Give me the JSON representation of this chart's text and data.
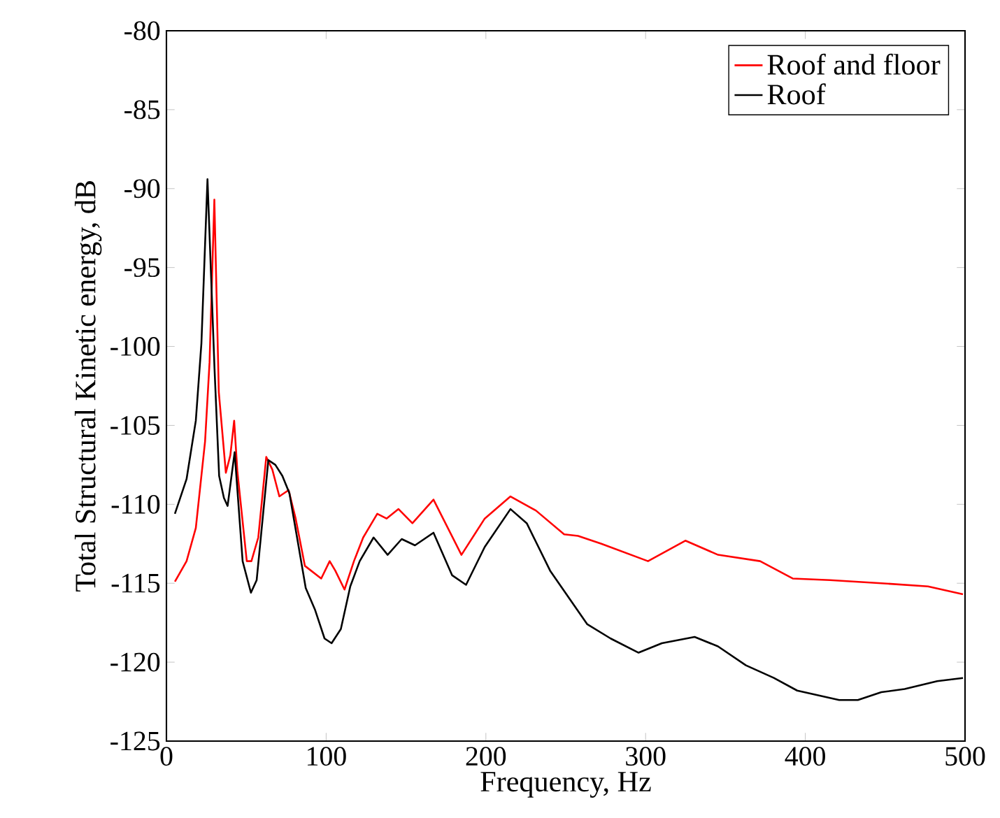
{
  "chart_data": {
    "type": "line",
    "xlabel": "Frequency, Hz",
    "ylabel": "Total Structural Kinetic energy, dB",
    "xlim": [
      0,
      500
    ],
    "ylim": [
      -125,
      -80
    ],
    "xticks": [
      0,
      100,
      200,
      300,
      400,
      500
    ],
    "yticks": [
      -125,
      -120,
      -115,
      -110,
      -105,
      -100,
      -95,
      -90,
      -85,
      -80
    ],
    "legend": "top right",
    "grid": false,
    "marker": "none",
    "line_style": "solid",
    "series": [
      {
        "name": "Roof and floor",
        "color": "#ff0000",
        "x": [
          5.3,
          12.6,
          18.4,
          24.2,
          27,
          30,
          32.8,
          37.2,
          40,
          42.4,
          44.4,
          50.3,
          53.2,
          57.5,
          62.5,
          66.3,
          70.7,
          76.5,
          80.9,
          86.7,
          96.9,
          102.2,
          105.7,
          111.5,
          117.4,
          123.2,
          132,
          137.8,
          145.3,
          154,
          167.2,
          184.7,
          199.3,
          215.4,
          231.4,
          249,
          257.7,
          272.3,
          301.5,
          324.9,
          345.4,
          371.7,
          392.1,
          415.5,
          447.6,
          476.8,
          498.7
        ],
        "values": [
          -114.9,
          -113.6,
          -111.5,
          -106,
          -101,
          -90.7,
          -102.9,
          -108,
          -106.9,
          -104.7,
          -107.9,
          -113.6,
          -113.6,
          -112.1,
          -107,
          -107.8,
          -109.5,
          -109.1,
          -110.9,
          -113.9,
          -114.7,
          -113.6,
          -114.2,
          -115.4,
          -113.6,
          -112.1,
          -110.6,
          -110.9,
          -110.3,
          -111.2,
          -109.7,
          -113.2,
          -110.9,
          -109.5,
          -110.4,
          -111.9,
          -112,
          -112.5,
          -113.6,
          -112.3,
          -113.2,
          -113.6,
          -114.7,
          -114.8,
          -115,
          -115.2,
          -115.7
        ]
      },
      {
        "name": "Roof",
        "color": "#000000",
        "x": [
          5.3,
          12.6,
          18.4,
          21.9,
          25.7,
          30.1,
          33,
          36,
          38.3,
          42.7,
          47.7,
          52.9,
          56.5,
          63.8,
          68.2,
          72.6,
          77,
          82.8,
          87.2,
          93.1,
          99,
          103.4,
          109.2,
          115.1,
          121,
          129.7,
          138.5,
          147.3,
          155.6,
          167.2,
          178.9,
          187.6,
          199.3,
          215.4,
          225.6,
          240.2,
          263.5,
          278.1,
          295.6,
          310.2,
          330.7,
          345.3,
          362.8,
          380.3,
          394.9,
          421.2,
          432.9,
          447.6,
          462.2,
          482.6,
          498.7
        ],
        "values": [
          -110.6,
          -108.4,
          -104.7,
          -99.8,
          -89.4,
          -101.4,
          -108.2,
          -109.6,
          -110.1,
          -106.7,
          -113.6,
          -115.6,
          -114.8,
          -107.2,
          -107.5,
          -108.2,
          -109.3,
          -112.7,
          -115.3,
          -116.7,
          -118.5,
          -118.8,
          -117.9,
          -115.2,
          -113.6,
          -112.1,
          -113.2,
          -112.2,
          -112.6,
          -111.8,
          -114.5,
          -115.1,
          -112.7,
          -110.3,
          -111.2,
          -114.2,
          -117.6,
          -118.5,
          -119.4,
          -118.8,
          -118.4,
          -119,
          -120.2,
          -121,
          -121.8,
          -122.4,
          -122.4,
          -121.9,
          -121.7,
          -121.2,
          -121
        ]
      }
    ]
  }
}
